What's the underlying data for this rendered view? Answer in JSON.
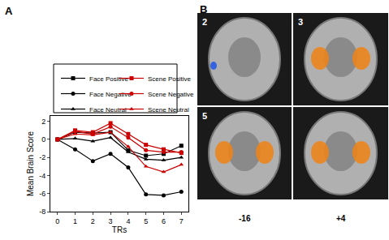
{
  "chart_data": {
    "type": "line",
    "x_label": "TRs",
    "y_label": "Mean Brain Score",
    "x": [
      0,
      1,
      2,
      3,
      4,
      5,
      6,
      7
    ],
    "xlim": [
      -0.4,
      7.4
    ],
    "xticks": [
      0,
      1,
      2,
      3,
      4,
      5,
      6,
      7
    ],
    "ylim": [
      -8,
      2.6
    ],
    "yticks": [
      -8,
      -6,
      -4,
      -2,
      0,
      2
    ],
    "grid": false,
    "legend": "top",
    "series": [
      {
        "name": "Face Positive",
        "color": "#000000",
        "marker": "square",
        "values": [
          0,
          0.8,
          0.7,
          0.8,
          -1.2,
          -1.8,
          -1.6,
          -0.7
        ]
      },
      {
        "name": "Face Negative",
        "color": "#000000",
        "marker": "circle",
        "values": [
          0,
          -1.1,
          -2.4,
          -1.6,
          -3.1,
          -6.1,
          -6.2,
          -5.8
        ]
      },
      {
        "name": "Face Neutral",
        "color": "#000000",
        "marker": "triangle-up",
        "values": [
          0,
          0.1,
          -0.2,
          0.2,
          -1.4,
          -2.2,
          -2.3,
          -2.0
        ]
      },
      {
        "name": "Scene Positive",
        "color": "#cc0000",
        "marker": "square",
        "values": [
          0,
          1.0,
          0.8,
          1.8,
          0.6,
          -0.6,
          -1.1,
          -1.5
        ]
      },
      {
        "name": "Scene Negative",
        "color": "#cc0000",
        "marker": "circle",
        "values": [
          0,
          0.9,
          0.6,
          1.4,
          0.2,
          -1.2,
          -1.4,
          -1.4
        ]
      },
      {
        "name": "Scene Neutral",
        "color": "#cc0000",
        "marker": "triangle-up",
        "values": [
          0,
          0.6,
          0.5,
          0.8,
          -0.8,
          -3.0,
          -3.6,
          -2.8
        ]
      }
    ]
  },
  "panel_labels": [
    "A",
    "B"
  ],
  "brain_panel": {
    "columns": [
      {
        "coordinate": "-16",
        "labels": [
          "2",
          "5"
        ]
      },
      {
        "coordinate": "+4",
        "labels": [
          "3"
        ]
      }
    ]
  }
}
